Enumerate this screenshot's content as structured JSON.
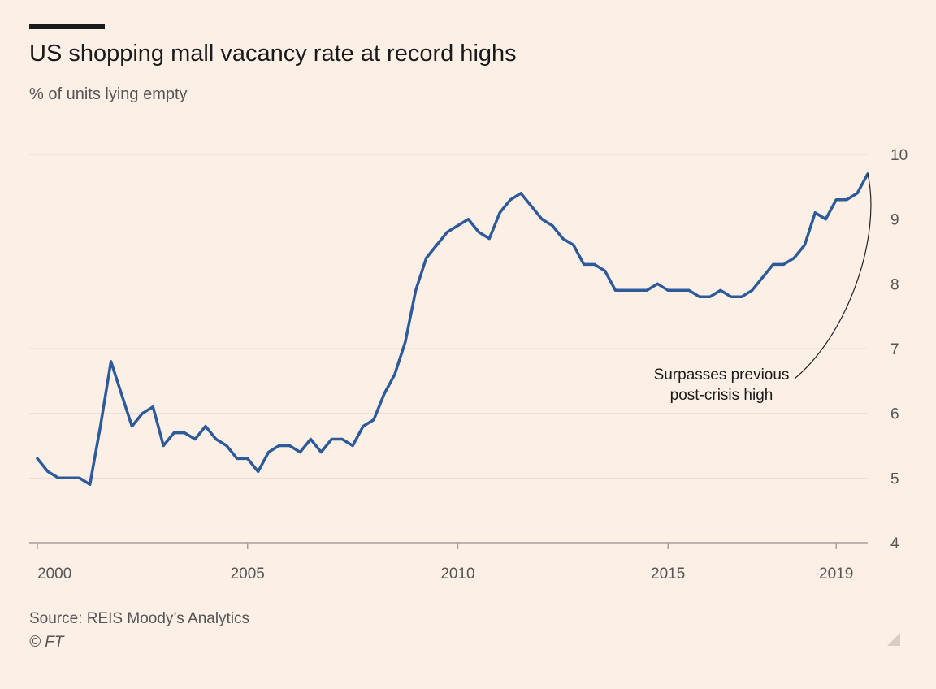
{
  "header": {
    "title": "US shopping mall vacancy rate at record highs",
    "subtitle": "% of units lying empty"
  },
  "footer": {
    "source": "Source: REIS Moody’s Analytics",
    "copyright": "© FT"
  },
  "colors": {
    "background": "#fcefe6",
    "line": "#2d5a98",
    "grid": "#eaded6",
    "text": "#555555",
    "title": "#1a1a1a"
  },
  "chart_data": {
    "type": "line",
    "title": "US shopping mall vacancy rate at record highs",
    "subtitle": "% of units lying empty",
    "xlabel": "",
    "ylabel": "",
    "x_ticks": [
      "2000",
      "2005",
      "2010",
      "2015",
      "2019"
    ],
    "y_ticks": [
      "4",
      "5",
      "6",
      "7",
      "8",
      "9",
      "10"
    ],
    "xlim": [
      2000,
      2019.75
    ],
    "ylim": [
      4,
      10
    ],
    "y_axis_side": "right",
    "grid": true,
    "series": [
      {
        "x": [
          2000,
          2000.25,
          2000.5,
          2000.75,
          2001,
          2001.25,
          2001.5,
          2001.75,
          2002,
          2002.25,
          2002.5,
          2002.75,
          2003,
          2003.25,
          2003.5,
          2003.75,
          2004,
          2004.25,
          2004.5,
          2004.75,
          2005,
          2005.25,
          2005.5,
          2005.75,
          2006,
          2006.25,
          2006.5,
          2006.75,
          2007,
          2007.25,
          2007.5,
          2007.75,
          2008,
          2008.25,
          2008.5,
          2008.75,
          2009,
          2009.25,
          2009.5,
          2009.75,
          2010,
          2010.25,
          2010.5,
          2010.75,
          2011,
          2011.25,
          2011.5,
          2011.75,
          2012,
          2012.25,
          2012.5,
          2012.75,
          2013,
          2013.25,
          2013.5,
          2013.75,
          2014,
          2014.25,
          2014.5,
          2014.75,
          2015,
          2015.25,
          2015.5,
          2015.75,
          2016,
          2016.25,
          2016.5,
          2016.75,
          2017,
          2017.25,
          2017.5,
          2017.75,
          2018,
          2018.25,
          2018.5,
          2018.75,
          2019,
          2019.25,
          2019.5,
          2019.75
        ],
        "values": [
          5.3,
          5.1,
          5.0,
          5.0,
          5.0,
          4.9,
          5.8,
          6.8,
          6.3,
          5.8,
          6.0,
          6.1,
          5.5,
          5.7,
          5.7,
          5.6,
          5.8,
          5.6,
          5.5,
          5.3,
          5.3,
          5.1,
          5.4,
          5.5,
          5.5,
          5.4,
          5.6,
          5.4,
          5.6,
          5.6,
          5.5,
          5.8,
          5.9,
          6.3,
          6.6,
          7.1,
          7.9,
          8.4,
          8.6,
          8.8,
          8.9,
          9.0,
          8.8,
          8.7,
          9.1,
          9.3,
          9.4,
          9.2,
          9.0,
          8.9,
          8.7,
          8.6,
          8.3,
          8.3,
          8.2,
          7.9,
          7.9,
          7.9,
          7.9,
          8.0,
          7.9,
          7.9,
          7.9,
          7.8,
          7.8,
          7.9,
          7.8,
          7.8,
          7.9,
          8.1,
          8.3,
          8.3,
          8.4,
          8.6,
          9.1,
          9.0,
          9.3,
          9.3,
          9.4,
          9.7
        ]
      }
    ],
    "annotations": [
      {
        "text": [
          "Surpasses previous",
          "post-crisis high"
        ],
        "x": 2019.75,
        "y": 9.7
      }
    ]
  }
}
